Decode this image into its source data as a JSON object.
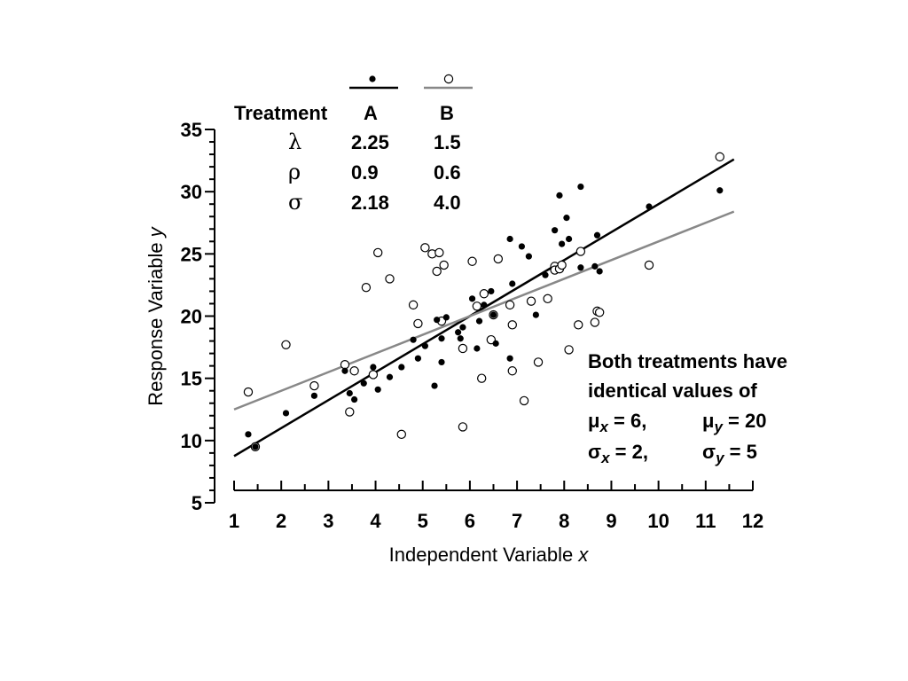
{
  "chart_data": {
    "type": "scatter",
    "xlabel": "Independent Variable",
    "xlabel_var": "x",
    "ylabel": "Response Variable",
    "ylabel_var": "y",
    "xlim": [
      1,
      12
    ],
    "ylim": [
      5,
      35
    ],
    "x_ticks": [
      1,
      2,
      3,
      4,
      5,
      6,
      7,
      8,
      9,
      10,
      11,
      12
    ],
    "y_ticks": [
      5,
      10,
      15,
      20,
      25,
      30,
      35
    ],
    "grid": false,
    "series": [
      {
        "name": "A",
        "marker": "filled-circle",
        "color": "#000000",
        "points": [
          [
            1.3,
            10.5
          ],
          [
            2.1,
            12.2
          ],
          [
            2.7,
            13.6
          ],
          [
            3.35,
            15.6
          ],
          [
            3.45,
            13.8
          ],
          [
            3.55,
            13.3
          ],
          [
            3.75,
            14.6
          ],
          [
            3.95,
            15.9
          ],
          [
            4.05,
            14.1
          ],
          [
            4.3,
            15.1
          ],
          [
            4.55,
            15.9
          ],
          [
            4.8,
            18.1
          ],
          [
            4.9,
            16.6
          ],
          [
            5.05,
            17.6
          ],
          [
            5.25,
            14.4
          ],
          [
            5.3,
            19.7
          ],
          [
            5.4,
            18.2
          ],
          [
            5.4,
            16.3
          ],
          [
            5.5,
            19.9
          ],
          [
            5.75,
            18.7
          ],
          [
            5.8,
            18.2
          ],
          [
            5.85,
            19.1
          ],
          [
            6.05,
            21.4
          ],
          [
            6.15,
            17.4
          ],
          [
            6.2,
            19.6
          ],
          [
            6.3,
            20.9
          ],
          [
            6.45,
            22.0
          ],
          [
            6.5,
            20.1
          ],
          [
            6.55,
            17.8
          ],
          [
            6.85,
            16.6
          ],
          [
            6.9,
            22.6
          ],
          [
            6.85,
            26.2
          ],
          [
            7.1,
            25.6
          ],
          [
            7.25,
            24.8
          ],
          [
            7.4,
            20.1
          ],
          [
            7.6,
            23.3
          ],
          [
            7.8,
            26.9
          ],
          [
            7.9,
            29.7
          ],
          [
            7.95,
            25.8
          ],
          [
            8.05,
            27.9
          ],
          [
            8.1,
            26.2
          ],
          [
            8.35,
            23.9
          ],
          [
            8.35,
            30.4
          ],
          [
            8.65,
            24.0
          ],
          [
            8.7,
            26.5
          ],
          [
            8.75,
            23.6
          ],
          [
            9.8,
            28.8
          ],
          [
            11.3,
            30.1
          ],
          [
            1.45,
            9.5
          ]
        ]
      },
      {
        "name": "B",
        "marker": "open-circle",
        "color": "#000000",
        "points": [
          [
            1.3,
            13.9
          ],
          [
            1.45,
            9.5
          ],
          [
            2.1,
            17.7
          ],
          [
            2.7,
            14.4
          ],
          [
            3.35,
            16.1
          ],
          [
            3.45,
            12.3
          ],
          [
            3.55,
            15.6
          ],
          [
            3.8,
            22.3
          ],
          [
            3.95,
            15.3
          ],
          [
            4.05,
            25.1
          ],
          [
            4.3,
            23.0
          ],
          [
            4.55,
            10.5
          ],
          [
            4.8,
            20.9
          ],
          [
            4.9,
            19.4
          ],
          [
            5.05,
            25.5
          ],
          [
            5.2,
            25.0
          ],
          [
            5.3,
            23.6
          ],
          [
            5.35,
            25.1
          ],
          [
            5.4,
            19.6
          ],
          [
            5.45,
            24.1
          ],
          [
            5.85,
            11.1
          ],
          [
            5.85,
            17.4
          ],
          [
            6.05,
            24.4
          ],
          [
            6.15,
            20.8
          ],
          [
            6.25,
            15.0
          ],
          [
            6.3,
            21.8
          ],
          [
            6.45,
            18.1
          ],
          [
            6.5,
            20.1
          ],
          [
            6.6,
            24.6
          ],
          [
            6.85,
            20.9
          ],
          [
            6.9,
            19.3
          ],
          [
            6.9,
            15.6
          ],
          [
            7.15,
            13.2
          ],
          [
            7.3,
            21.2
          ],
          [
            7.45,
            16.3
          ],
          [
            7.65,
            21.4
          ],
          [
            7.8,
            24.0
          ],
          [
            7.8,
            23.7
          ],
          [
            7.9,
            23.8
          ],
          [
            7.95,
            24.1
          ],
          [
            8.1,
            17.3
          ],
          [
            8.3,
            19.3
          ],
          [
            8.35,
            25.2
          ],
          [
            8.65,
            19.5
          ],
          [
            8.7,
            20.4
          ],
          [
            8.75,
            20.3
          ],
          [
            9.8,
            24.1
          ],
          [
            11.3,
            32.8
          ]
        ]
      }
    ],
    "regression_lines": [
      {
        "name": "A",
        "color": "#000000",
        "x": [
          1,
          11.6
        ],
        "y": [
          8.75,
          32.6
        ]
      },
      {
        "name": "B",
        "color": "#888888",
        "x": [
          1,
          11.6
        ],
        "y": [
          12.5,
          28.4
        ]
      }
    ],
    "legend_table": {
      "header_label": "Treatment",
      "columns": [
        "A",
        "B"
      ],
      "rows": [
        {
          "symbol": "λ",
          "values": [
            "2.25",
            "1.5"
          ]
        },
        {
          "symbol": "ρ",
          "values": [
            "0.9",
            "0.6"
          ]
        },
        {
          "symbol": "σ",
          "values": [
            "2.18",
            "4.0"
          ]
        }
      ],
      "placement": "top-left"
    },
    "annotation": {
      "line1": "Both treatments have",
      "line2": "identical values of",
      "mu_x": {
        "sym": "μ",
        "sub": "x",
        "value": " = 6,"
      },
      "mu_y": {
        "sym": "μ",
        "sub": "y",
        "value": " = 20"
      },
      "sigma_x": {
        "sym": "σ",
        "sub": "x",
        "value": " = 2,"
      },
      "sigma_y": {
        "sym": "σ",
        "sub": "y",
        "value": " = 5"
      },
      "placement": "bottom-right"
    }
  }
}
